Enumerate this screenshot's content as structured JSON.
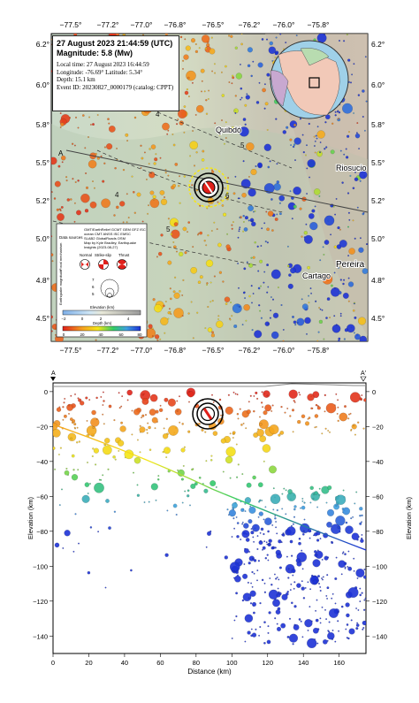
{
  "event": {
    "title_line1": "27 August 2023 21:44:59 (UTC)",
    "title_line2": "Magnitude: 5.8 (Mw)",
    "local_time": "Local time: 27 August 2023 16:44:59",
    "coords": "Longitude: -76.69°  Latitude: 5.34°",
    "depth": "Depth: 15.1 km",
    "event_id": "Event ID: 20230827_0000179 (catalog: CPPT)",
    "epicenter_lon": -76.69,
    "epicenter_lat": 5.34,
    "depth_km": 15.1,
    "magnitude": 5.8
  },
  "map": {
    "lon_ticks": [
      "−77.5°",
      "−77.2°",
      "−77.0°",
      "−76.8°",
      "−76.5°",
      "−76.2°",
      "−76.0°",
      "−75.8°"
    ],
    "lat_ticks": [
      "6.2°",
      "6.0°",
      "5.8°",
      "5.5°",
      "5.2°",
      "5.0°",
      "4.8°",
      "4.5°"
    ],
    "cities": [
      "Quibdó",
      "Riosucio",
      "Pereira",
      "Cartago"
    ],
    "contour_labels": [
      "4",
      "5",
      "4",
      "5",
      "6"
    ],
    "section_labels": [
      "A",
      "A'"
    ]
  },
  "legend": {
    "data_sources_label": "Data sources",
    "data_sources_text": [
      "GMT/EarthRelief GCMT GEM GFZ ISC",
      "ocean CMT ANSS ISC EMSC",
      "SLAB2 GlobalRoads OSM",
      "Map by Kyle Bradley, Earthquake",
      "Insights (2023-08-27)"
    ],
    "focal_label": "Focal mechanism",
    "focal_types": [
      "Normal",
      "Strike-slip",
      "Thrust"
    ],
    "magnitude_label": "Earthquake magnitude",
    "magnitude_values": [
      "7",
      "6",
      "5"
    ],
    "elevation_title": "Elevation (km)",
    "elevation_ticks": [
      "−2",
      "0",
      "2",
      "4"
    ],
    "depth_title": "Depth (km)",
    "depth_ticks": [
      "0",
      "20",
      "40",
      "60",
      "80"
    ]
  },
  "colors": {
    "shallow": "#e0201b",
    "mid": "#f5e617",
    "intermediate": "#33cc66",
    "deep": "#1d33d6"
  },
  "cross_section": {
    "title_left": "A",
    "title_right": "A'",
    "xlabel": "Distance (km)",
    "ylabel": "Elevation (km)",
    "x_ticks": [
      "0",
      "20",
      "40",
      "60",
      "80",
      "100",
      "120",
      "140",
      "160"
    ],
    "y_ticks": [
      "0",
      "−20",
      "−40",
      "−60",
      "−80",
      "−100",
      "−120",
      "−140"
    ],
    "xlim": [
      0,
      175
    ],
    "ylim": [
      -150,
      5
    ]
  }
}
